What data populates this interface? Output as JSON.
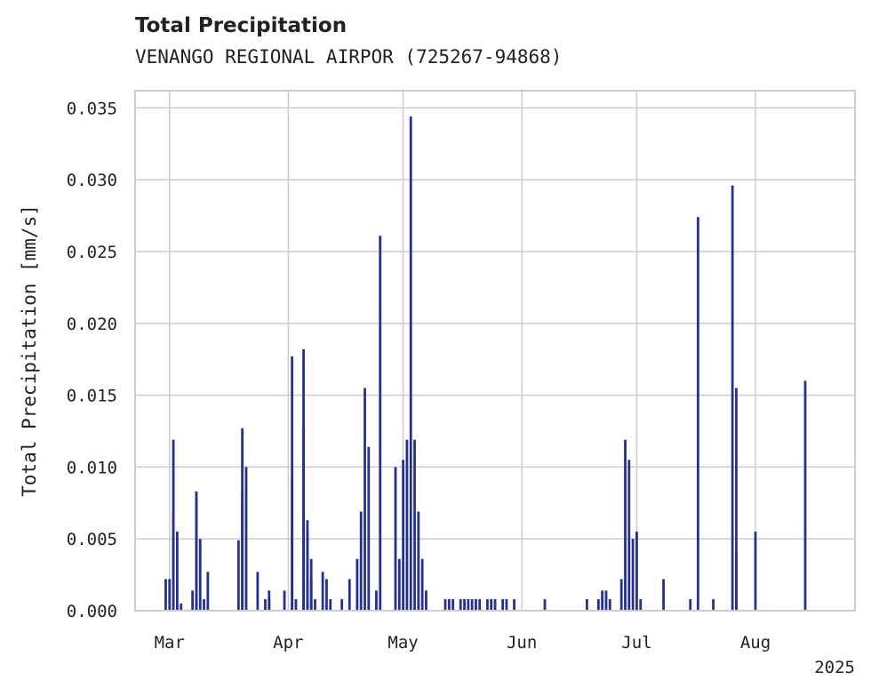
{
  "chart_data": {
    "type": "bar",
    "title": "Total Precipitation",
    "subtitle": "VENANGO REGIONAL AIRPOR (725267-94868)",
    "ylabel": "Total Precipitation [mm/s]",
    "xlabel": "",
    "year_label": "2025",
    "ylim": [
      0,
      0.0362
    ],
    "xlim": [
      "2025-02-20",
      "2025-08-27"
    ],
    "yticks": [
      0.0,
      0.005,
      0.01,
      0.015,
      0.02,
      0.025,
      0.03,
      0.035
    ],
    "ytick_labels": [
      "0.000",
      "0.005",
      "0.010",
      "0.015",
      "0.020",
      "0.025",
      "0.030",
      "0.035"
    ],
    "xticks": [
      "2025-03-01",
      "2025-04-01",
      "2025-05-01",
      "2025-06-01",
      "2025-07-01",
      "2025-08-01"
    ],
    "xtick_labels": [
      "Mar",
      "Apr",
      "May",
      "Jun",
      "Jul",
      "Aug"
    ],
    "grid": true,
    "bar_color": "#24318f",
    "series": [
      {
        "x": [
          "2025-02-28",
          "2025-03-01",
          "2025-03-02",
          "2025-03-02",
          "2025-03-03",
          "2025-03-04",
          "2025-03-07",
          "2025-03-08",
          "2025-03-08",
          "2025-03-09",
          "2025-03-10",
          "2025-03-11",
          "2025-03-19",
          "2025-03-20",
          "2025-03-20",
          "2025-03-21",
          "2025-03-24",
          "2025-03-26",
          "2025-03-27",
          "2025-03-27",
          "2025-03-31",
          "2025-04-02",
          "2025-04-02",
          "2025-04-03",
          "2025-04-05",
          "2025-04-05",
          "2025-04-06",
          "2025-04-06",
          "2025-04-07",
          "2025-04-07",
          "2025-04-08",
          "2025-04-10",
          "2025-04-11",
          "2025-04-12",
          "2025-04-15",
          "2025-04-17",
          "2025-04-19",
          "2025-04-20",
          "2025-04-21",
          "2025-04-22",
          "2025-04-24",
          "2025-04-25",
          "2025-04-29",
          "2025-04-30",
          "2025-05-01",
          "2025-05-02",
          "2025-05-03",
          "2025-05-04",
          "2025-05-05",
          "2025-05-06",
          "2025-05-07",
          "2025-05-12",
          "2025-05-13",
          "2025-05-14",
          "2025-05-16",
          "2025-05-17",
          "2025-05-18",
          "2025-05-19",
          "2025-05-20",
          "2025-05-21",
          "2025-05-23",
          "2025-05-24",
          "2025-05-25",
          "2025-05-27",
          "2025-05-28",
          "2025-05-30",
          "2025-06-07",
          "2025-06-18",
          "2025-06-21",
          "2025-06-22",
          "2025-06-23",
          "2025-06-24",
          "2025-06-27",
          "2025-06-28",
          "2025-06-29",
          "2025-06-30",
          "2025-07-01",
          "2025-07-02",
          "2025-07-08",
          "2025-07-15",
          "2025-07-17",
          "2025-07-21",
          "2025-07-26",
          "2025-07-27",
          "2025-07-27",
          "2025-08-01",
          "2025-08-14"
        ],
        "values": [
          0.0022,
          0.0022,
          0.0069,
          0.0119,
          0.0055,
          0.0005,
          0.0014,
          0.0078,
          0.0083,
          0.005,
          0.0008,
          0.0027,
          0.0049,
          0.0083,
          0.0127,
          0.01,
          0.0027,
          0.0008,
          0.0014,
          0.0008,
          0.0014,
          0.0091,
          0.0177,
          0.0008,
          0.0182,
          0.0127,
          0.0063,
          0.0055,
          0.0036,
          0.0022,
          0.0008,
          0.0027,
          0.0022,
          0.0008,
          0.0008,
          0.0022,
          0.0036,
          0.0069,
          0.0155,
          0.0114,
          0.0014,
          0.0261,
          0.01,
          0.0036,
          0.0105,
          0.0119,
          0.0344,
          0.0119,
          0.0069,
          0.0036,
          0.0014,
          0.0008,
          0.0008,
          0.0008,
          0.0008,
          0.0008,
          0.0008,
          0.0008,
          0.0008,
          0.0008,
          0.0008,
          0.0008,
          0.0008,
          0.0008,
          0.0008,
          0.0008,
          0.0008,
          0.0008,
          0.0008,
          0.0014,
          0.0014,
          0.0008,
          0.0022,
          0.0119,
          0.0105,
          0.005,
          0.0055,
          0.0008,
          0.0022,
          0.0008,
          0.0274,
          0.0008,
          0.0296,
          0.0155,
          0.0041,
          0.0055,
          0.016
        ]
      }
    ]
  }
}
